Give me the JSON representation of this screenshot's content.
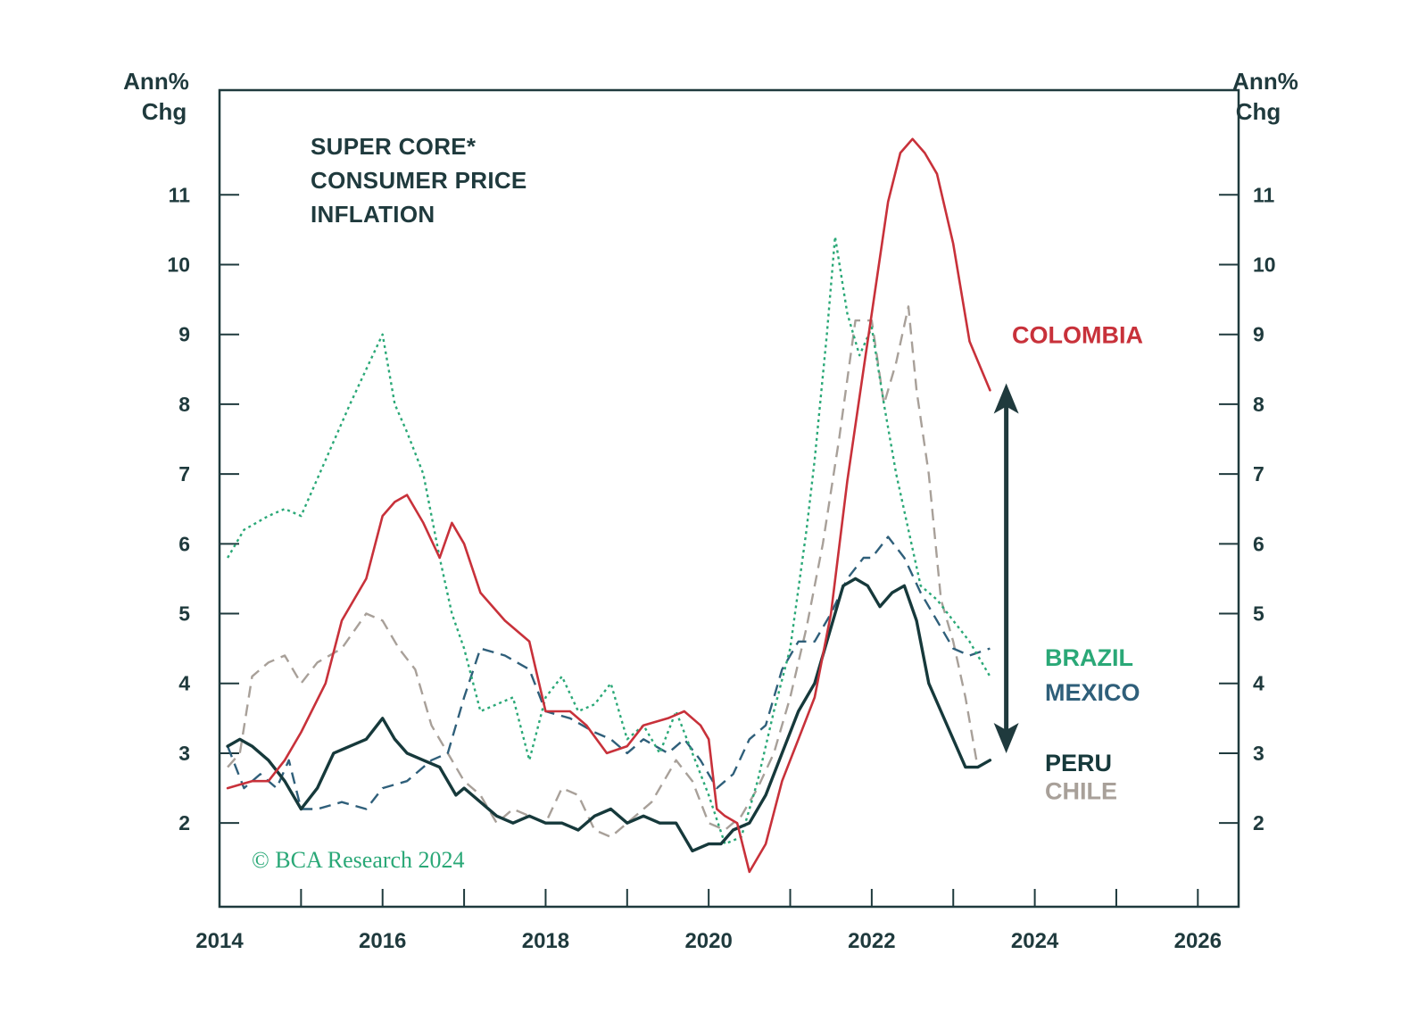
{
  "chart_data": {
    "type": "line",
    "title_lines": [
      "SUPER CORE*",
      "CONSUMER PRICE",
      "INFLATION"
    ],
    "ylabel_left": [
      "Ann%",
      "Chg"
    ],
    "ylabel_right": [
      "Ann%",
      "Chg"
    ],
    "xlim": [
      2014.0,
      2026.5
    ],
    "ylim": [
      0.8,
      12.5
    ],
    "x_ticks": [
      2014,
      2016,
      2018,
      2020,
      2022,
      2024,
      2026
    ],
    "x_tick_labels": [
      "2014",
      "2016",
      "2018",
      "2020",
      "2022",
      "2024",
      "2026"
    ],
    "x_minor_ticks": [
      2015,
      2017,
      2019,
      2021,
      2023,
      2025
    ],
    "y_ticks": [
      2,
      3,
      4,
      5,
      6,
      7,
      8,
      9,
      10,
      11
    ],
    "y_tick_labels": [
      "2",
      "3",
      "4",
      "5",
      "6",
      "7",
      "8",
      "9",
      "10",
      "11"
    ],
    "grid": false,
    "arrow": {
      "from_y": 3.0,
      "to_y": 8.3,
      "x": 2023.65,
      "color": "#1f3a3d"
    },
    "copyright": "© BCA Research 2024",
    "series": [
      {
        "name": "COLOMBIA",
        "color": "#c8313a",
        "dash": "solid",
        "width": 2.6,
        "label_y": 9.0,
        "x": [
          2014.1,
          2014.25,
          2014.4,
          2014.6,
          2014.8,
          2015.0,
          2015.3,
          2015.5,
          2015.8,
          2016.0,
          2016.15,
          2016.3,
          2016.5,
          2016.7,
          2016.85,
          2017.0,
          2017.2,
          2017.5,
          2017.8,
          2018.0,
          2018.3,
          2018.5,
          2018.75,
          2019.0,
          2019.2,
          2019.5,
          2019.7,
          2019.9,
          2020.0,
          2020.1,
          2020.2,
          2020.35,
          2020.5,
          2020.7,
          2020.9,
          2021.1,
          2021.3,
          2021.5,
          2021.7,
          2021.9,
          2022.0,
          2022.2,
          2022.35,
          2022.5,
          2022.65,
          2022.8,
          2023.0,
          2023.2,
          2023.45
        ],
        "y": [
          2.5,
          2.55,
          2.6,
          2.6,
          2.9,
          3.3,
          4.0,
          4.9,
          5.5,
          6.4,
          6.6,
          6.7,
          6.3,
          5.8,
          6.3,
          6.0,
          5.3,
          4.9,
          4.6,
          3.6,
          3.6,
          3.4,
          3.0,
          3.1,
          3.4,
          3.5,
          3.6,
          3.4,
          3.2,
          2.2,
          2.1,
          2.0,
          1.3,
          1.7,
          2.6,
          3.2,
          3.8,
          5.0,
          6.9,
          8.5,
          9.3,
          10.9,
          11.6,
          11.8,
          11.6,
          11.3,
          10.3,
          8.9,
          8.2
        ]
      },
      {
        "name": "BRAZIL",
        "color": "#2aa877",
        "dash": "dotted",
        "width": 2.4,
        "label_y": 4.38,
        "x": [
          2014.1,
          2014.3,
          2014.6,
          2014.8,
          2015.0,
          2015.3,
          2015.6,
          2015.8,
          2016.0,
          2016.15,
          2016.3,
          2016.5,
          2016.7,
          2016.85,
          2017.0,
          2017.2,
          2017.4,
          2017.6,
          2017.8,
          2018.0,
          2018.2,
          2018.4,
          2018.6,
          2018.8,
          2019.0,
          2019.2,
          2019.4,
          2019.6,
          2019.8,
          2020.0,
          2020.2,
          2020.4,
          2020.6,
          2020.8,
          2021.0,
          2021.2,
          2021.3,
          2021.45,
          2021.55,
          2021.7,
          2021.85,
          2022.0,
          2022.15,
          2022.3,
          2022.45,
          2022.6,
          2022.8,
          2023.0,
          2023.2,
          2023.45
        ],
        "y": [
          5.8,
          6.2,
          6.4,
          6.5,
          6.4,
          7.2,
          8.0,
          8.5,
          9.0,
          8.0,
          7.6,
          7.0,
          5.8,
          5.0,
          4.5,
          3.6,
          3.7,
          3.8,
          2.9,
          3.8,
          4.1,
          3.6,
          3.7,
          4.0,
          3.2,
          3.4,
          3.0,
          3.6,
          3.0,
          2.4,
          1.7,
          1.8,
          2.6,
          3.6,
          4.5,
          6.2,
          7.2,
          9.0,
          10.4,
          9.3,
          8.7,
          9.1,
          8.0,
          7.0,
          6.2,
          5.4,
          5.2,
          4.9,
          4.6,
          4.1
        ]
      },
      {
        "name": "MEXICO",
        "color": "#2f5f7a",
        "dash": "dashed",
        "width": 2.4,
        "label_y": 3.88,
        "x": [
          2014.1,
          2014.3,
          2014.5,
          2014.7,
          2014.85,
          2015.0,
          2015.2,
          2015.5,
          2015.8,
          2016.0,
          2016.3,
          2016.6,
          2016.8,
          2017.0,
          2017.2,
          2017.5,
          2017.8,
          2018.0,
          2018.3,
          2018.6,
          2018.8,
          2019.0,
          2019.2,
          2019.5,
          2019.7,
          2019.9,
          2020.1,
          2020.3,
          2020.5,
          2020.7,
          2020.9,
          2021.1,
          2021.3,
          2021.5,
          2021.7,
          2021.9,
          2022.0,
          2022.2,
          2022.4,
          2022.6,
          2022.8,
          2023.0,
          2023.2,
          2023.45
        ],
        "y": [
          3.1,
          2.5,
          2.7,
          2.5,
          2.9,
          2.2,
          2.2,
          2.3,
          2.2,
          2.5,
          2.6,
          2.9,
          3.0,
          3.8,
          4.5,
          4.4,
          4.2,
          3.6,
          3.5,
          3.3,
          3.2,
          3.0,
          3.2,
          3.0,
          3.2,
          2.9,
          2.5,
          2.7,
          3.2,
          3.4,
          4.2,
          4.6,
          4.6,
          5.0,
          5.5,
          5.8,
          5.8,
          6.1,
          5.8,
          5.3,
          4.9,
          4.5,
          4.4,
          4.5
        ]
      },
      {
        "name": "PERU",
        "color": "#16393b",
        "dash": "solid",
        "width": 3.4,
        "label_y": 2.87,
        "x": [
          2014.1,
          2014.25,
          2014.4,
          2014.6,
          2014.8,
          2015.0,
          2015.2,
          2015.4,
          2015.6,
          2015.8,
          2016.0,
          2016.15,
          2016.3,
          2016.5,
          2016.7,
          2016.9,
          2017.0,
          2017.2,
          2017.4,
          2017.6,
          2017.8,
          2018.0,
          2018.2,
          2018.4,
          2018.6,
          2018.8,
          2019.0,
          2019.2,
          2019.4,
          2019.6,
          2019.8,
          2020.0,
          2020.15,
          2020.3,
          2020.5,
          2020.7,
          2020.9,
          2021.1,
          2021.3,
          2021.5,
          2021.65,
          2021.8,
          2021.95,
          2022.1,
          2022.25,
          2022.4,
          2022.55,
          2022.7,
          2022.85,
          2023.0,
          2023.15,
          2023.3,
          2023.45
        ],
        "y": [
          3.1,
          3.2,
          3.1,
          2.9,
          2.6,
          2.2,
          2.5,
          3.0,
          3.1,
          3.2,
          3.5,
          3.2,
          3.0,
          2.9,
          2.8,
          2.4,
          2.5,
          2.3,
          2.1,
          2.0,
          2.1,
          2.0,
          2.0,
          1.9,
          2.1,
          2.2,
          2.0,
          2.1,
          2.0,
          2.0,
          1.6,
          1.7,
          1.7,
          1.9,
          2.0,
          2.4,
          3.0,
          3.6,
          4.0,
          4.8,
          5.4,
          5.5,
          5.4,
          5.1,
          5.3,
          5.4,
          4.9,
          4.0,
          3.6,
          3.2,
          2.8,
          2.8,
          2.9
        ]
      },
      {
        "name": "CHILE",
        "color": "#a8a099",
        "dash": "dashed",
        "width": 2.4,
        "label_y": 2.47,
        "x": [
          2014.1,
          2014.25,
          2014.4,
          2014.6,
          2014.8,
          2015.0,
          2015.2,
          2015.5,
          2015.8,
          2016.0,
          2016.2,
          2016.4,
          2016.6,
          2016.8,
          2017.0,
          2017.2,
          2017.4,
          2017.6,
          2017.8,
          2018.0,
          2018.2,
          2018.4,
          2018.6,
          2018.8,
          2019.0,
          2019.3,
          2019.6,
          2019.8,
          2020.0,
          2020.2,
          2020.4,
          2020.6,
          2020.8,
          2021.0,
          2021.2,
          2021.4,
          2021.6,
          2021.8,
          2022.0,
          2022.15,
          2022.3,
          2022.45,
          2022.55,
          2022.7,
          2022.85,
          2023.0,
          2023.15,
          2023.3,
          2023.45
        ],
        "y": [
          2.8,
          3.0,
          4.1,
          4.3,
          4.4,
          4.0,
          4.3,
          4.5,
          5.0,
          4.9,
          4.5,
          4.2,
          3.4,
          3.0,
          2.6,
          2.4,
          2.0,
          2.2,
          2.1,
          2.0,
          2.5,
          2.4,
          1.9,
          1.8,
          2.0,
          2.3,
          2.9,
          2.6,
          2.0,
          1.9,
          2.1,
          2.5,
          3.0,
          3.8,
          4.8,
          6.0,
          7.5,
          9.2,
          9.2,
          8.0,
          8.6,
          9.4,
          8.2,
          7.0,
          5.2,
          4.6,
          3.8,
          2.8,
          2.9
        ]
      }
    ]
  }
}
